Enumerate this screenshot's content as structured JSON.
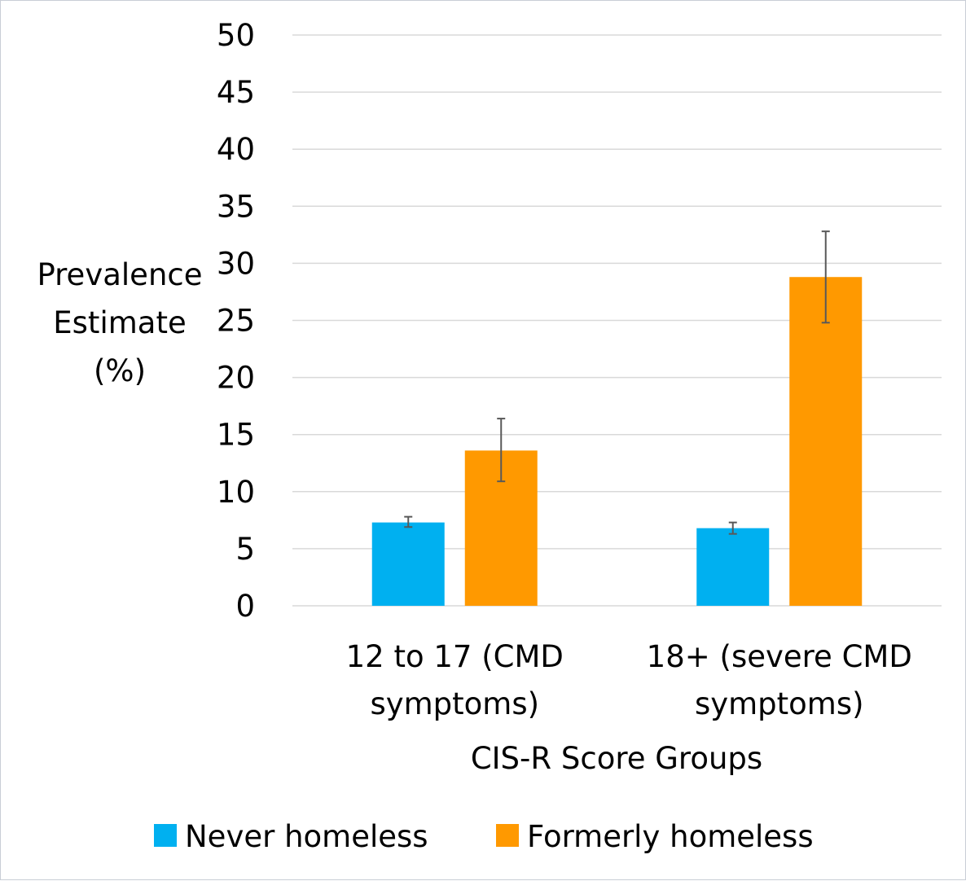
{
  "chart_data": {
    "type": "bar",
    "categories": [
      "12 to 17 (CMD symptoms)",
      "18+ (severe CMD symptoms)"
    ],
    "category_lines": [
      [
        "12 to 17 (CMD",
        "symptoms)"
      ],
      [
        "18+ (severe CMD",
        "symptoms)"
      ]
    ],
    "series": [
      {
        "name": "Never homeless",
        "color": "#00b0f0",
        "values": [
          7.3,
          6.8
        ],
        "error_low": [
          6.9,
          6.3
        ],
        "error_high": [
          7.8,
          7.3
        ]
      },
      {
        "name": "Formerly homeless",
        "color": "#ff9900",
        "values": [
          13.6,
          28.8
        ],
        "error_low": [
          10.9,
          24.8
        ],
        "error_high": [
          16.4,
          32.8
        ]
      }
    ],
    "ylim": [
      0,
      50
    ],
    "yticks": [
      "0",
      "5",
      "10",
      "15",
      "20",
      "25",
      "30",
      "35",
      "40",
      "45",
      "50"
    ],
    "ylabel_lines": [
      "Prevalence",
      "Estimate",
      "(%)"
    ],
    "xlabel": "CIS-R Score Groups",
    "grid": true,
    "gridline_color": "#d9d9d9",
    "legend_position": "bottom"
  }
}
